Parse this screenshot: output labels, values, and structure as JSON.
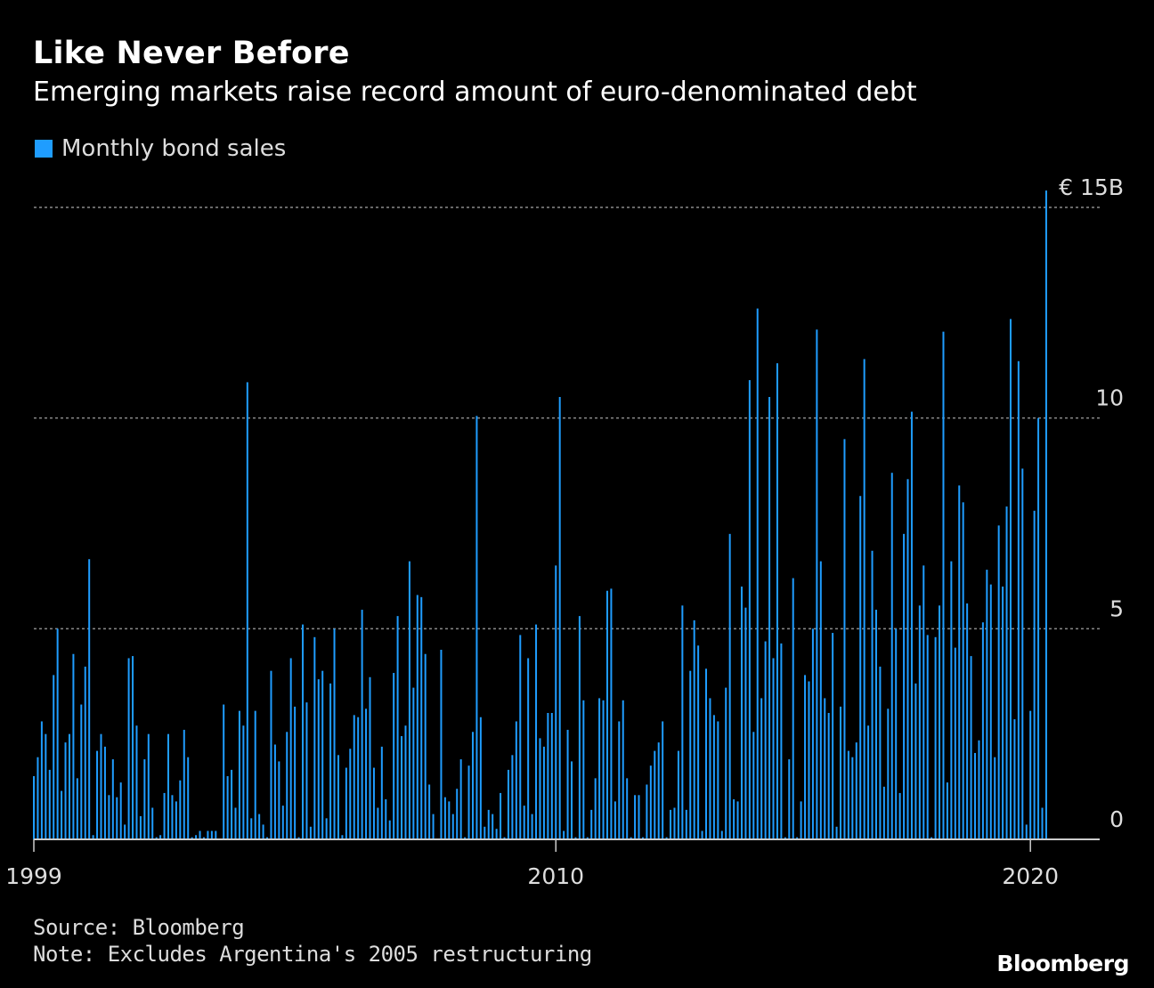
{
  "header": {
    "title": "Like Never Before",
    "subtitle": "Emerging markets raise record amount of euro-denominated debt"
  },
  "legend": {
    "label": "Monthly bond sales",
    "color": "#1f9dff"
  },
  "footer": {
    "source": "Source: Bloomberg",
    "note": "Note: Excludes Argentina's 2005 restructuring",
    "brand": "Bloomberg"
  },
  "chart_data": {
    "type": "bar",
    "title": "Like Never Before",
    "subtitle": "Emerging markets raise record amount of euro-denominated debt",
    "xlabel": "",
    "ylabel": "",
    "unit": "€ B",
    "grid": true,
    "legend_position": "top-left",
    "y_axis_position": "right",
    "ylim": [
      0,
      15
    ],
    "yticks": [
      {
        "value": 15,
        "label": "€ 15B"
      },
      {
        "value": 10,
        "label": "10"
      },
      {
        "value": 5,
        "label": "5"
      },
      {
        "value": 0,
        "label": "0"
      }
    ],
    "x_start": "1999-01",
    "xlim": [
      1999,
      2021.46
    ],
    "xticks": [
      {
        "value": 1999,
        "label": "1999"
      },
      {
        "value": 2010,
        "label": "2010"
      },
      {
        "value": 2020,
        "label": "2020"
      }
    ],
    "series": [
      {
        "name": "Monthly bond sales",
        "color": "#1f9dff",
        "values": [
          1.5,
          1.95,
          2.8,
          2.5,
          1.65,
          3.9,
          5.0,
          1.15,
          2.3,
          2.5,
          4.4,
          1.45,
          3.2,
          4.1,
          6.65,
          0.1,
          2.1,
          2.5,
          2.2,
          1.05,
          1.9,
          1.0,
          1.35,
          0.35,
          4.3,
          4.35,
          2.7,
          0.55,
          1.9,
          2.5,
          0.75,
          0.05,
          0.1,
          1.1,
          2.5,
          1.05,
          0.9,
          1.4,
          2.6,
          1.95,
          0.05,
          0.1,
          0.2,
          0.05,
          0.2,
          0.2,
          0.2,
          0,
          3.2,
          1.5,
          1.65,
          0.75,
          3.05,
          2.7,
          10.85,
          0.5,
          3.05,
          0.6,
          0.35,
          0.05,
          4.0,
          2.25,
          1.85,
          0.8,
          2.55,
          4.3,
          3.15,
          0.05,
          5.1,
          3.25,
          0.3,
          4.8,
          3.8,
          4.0,
          0.5,
          3.7,
          5.0,
          2.0,
          0.1,
          1.7,
          2.15,
          2.95,
          2.9,
          5.45,
          3.1,
          3.85,
          1.7,
          0.75,
          2.2,
          0.95,
          0.45,
          3.95,
          5.3,
          2.45,
          2.7,
          6.6,
          3.6,
          5.8,
          5.75,
          4.4,
          1.3,
          0.6,
          0,
          4.5,
          1.0,
          0.9,
          0.6,
          1.2,
          1.9,
          0.05,
          1.75,
          2.55,
          10.05,
          2.9,
          0.3,
          0.7,
          0.6,
          0.25,
          1.1,
          0.05,
          1.65,
          2.0,
          2.8,
          4.85,
          0.8,
          4.3,
          0.6,
          5.1,
          2.4,
          2.2,
          3.0,
          3.0,
          6.5,
          10.5,
          0.2,
          2.6,
          1.85,
          0.05,
          5.3,
          3.3,
          0.05,
          0.7,
          1.45,
          3.35,
          3.3,
          5.9,
          5.95,
          0.9,
          2.8,
          3.3,
          1.45,
          0.05,
          1.05,
          1.05,
          0.05,
          1.3,
          1.75,
          2.1,
          2.3,
          2.8,
          0.05,
          0.7,
          0.75,
          2.1,
          5.55,
          0.7,
          4.0,
          5.2,
          4.6,
          0.2,
          4.05,
          3.35,
          2.95,
          2.8,
          0.2,
          3.6,
          7.25,
          0.95,
          0.9,
          6.0,
          5.5,
          10.9,
          2.55,
          12.6,
          3.35,
          4.7,
          10.5,
          4.3,
          11.3,
          4.65,
          0.05,
          1.9,
          6.2,
          0.05,
          0.9,
          3.9,
          3.75,
          5.0,
          12.1,
          6.6,
          3.35,
          3.0,
          4.9,
          0.3,
          3.15,
          9.5,
          2.1,
          1.95,
          2.3,
          8.15,
          11.4,
          2.7,
          6.85,
          5.45,
          4.1,
          1.25,
          3.1,
          8.7,
          5.0,
          1.1,
          7.25,
          8.55,
          10.15,
          3.7,
          5.55,
          6.5,
          4.85,
          0.05,
          4.8,
          5.55,
          12.05,
          1.35,
          6.6,
          4.55,
          8.4,
          8.0,
          5.6,
          4.35,
          2.05,
          2.35,
          5.15,
          6.4,
          6.05,
          1.95,
          7.45,
          6.0,
          7.9,
          12.35,
          2.85,
          11.35,
          8.8,
          0.35,
          3.05,
          7.8,
          10.0,
          0.75,
          15.4
        ]
      }
    ]
  }
}
